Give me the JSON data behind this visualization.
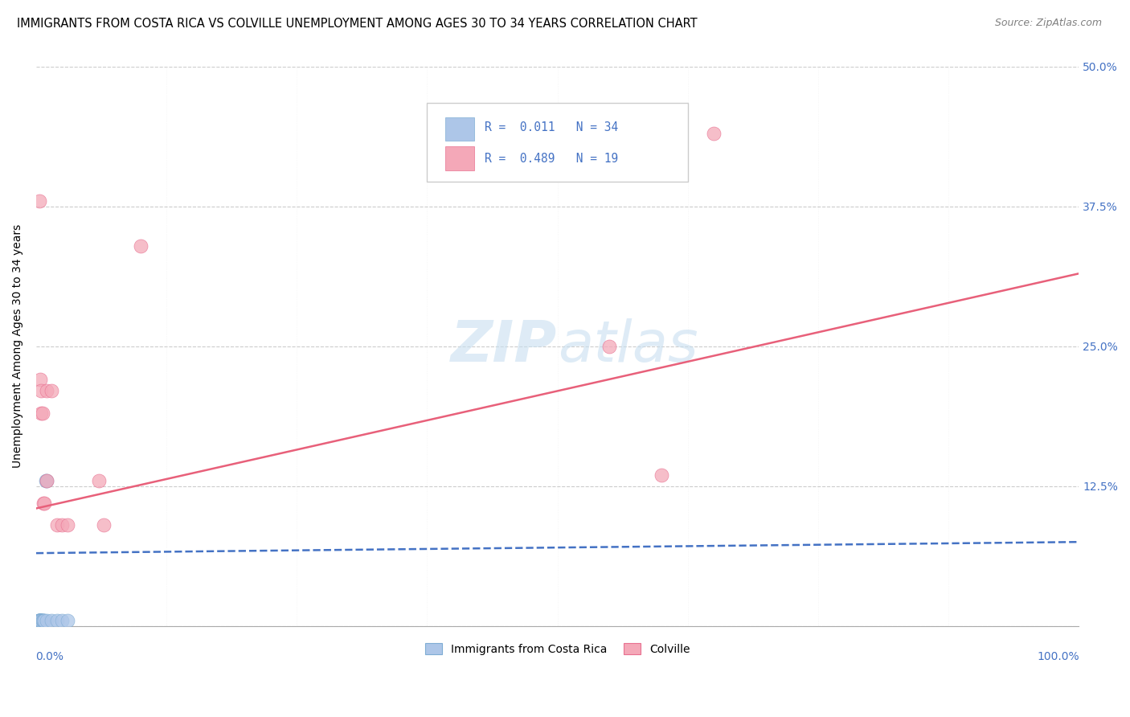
{
  "title": "IMMIGRANTS FROM COSTA RICA VS COLVILLE UNEMPLOYMENT AMONG AGES 30 TO 34 YEARS CORRELATION CHART",
  "source": "Source: ZipAtlas.com",
  "ylabel": "Unemployment Among Ages 30 to 34 years",
  "xlim": [
    0,
    1.0
  ],
  "ylim": [
    0,
    0.5
  ],
  "yticks": [
    0.0,
    0.125,
    0.25,
    0.375,
    0.5
  ],
  "yticklabels": [
    "",
    "12.5%",
    "25.0%",
    "37.5%",
    "50.0%"
  ],
  "xtick_left": "0.0%",
  "xtick_right": "100.0%",
  "legend_r1_text": "R =  0.011   N = 34",
  "legend_r2_text": "R =  0.489   N = 19",
  "legend1_label": "Immigrants from Costa Rica",
  "legend2_label": "Colville",
  "blue_scatter_x": [
    0.001,
    0.001,
    0.001,
    0.001,
    0.002,
    0.002,
    0.002,
    0.002,
    0.002,
    0.003,
    0.003,
    0.003,
    0.003,
    0.003,
    0.004,
    0.004,
    0.004,
    0.005,
    0.005,
    0.005,
    0.005,
    0.005,
    0.006,
    0.006,
    0.007,
    0.007,
    0.008,
    0.009,
    0.01,
    0.01,
    0.015,
    0.02,
    0.025,
    0.03
  ],
  "blue_scatter_y": [
    0.0,
    0.0,
    0.0,
    0.0,
    0.0,
    0.0,
    0.0,
    0.005,
    0.005,
    0.005,
    0.005,
    0.005,
    0.005,
    0.005,
    0.005,
    0.005,
    0.005,
    0.005,
    0.005,
    0.005,
    0.005,
    0.005,
    0.005,
    0.005,
    0.005,
    0.005,
    0.005,
    0.13,
    0.13,
    0.005,
    0.005,
    0.005,
    0.005,
    0.005
  ],
  "pink_scatter_x": [
    0.003,
    0.004,
    0.005,
    0.005,
    0.006,
    0.007,
    0.008,
    0.01,
    0.01,
    0.015,
    0.02,
    0.025,
    0.03,
    0.06,
    0.065,
    0.1,
    0.55,
    0.6,
    0.65
  ],
  "pink_scatter_y": [
    0.38,
    0.22,
    0.21,
    0.19,
    0.19,
    0.11,
    0.11,
    0.13,
    0.21,
    0.21,
    0.09,
    0.09,
    0.09,
    0.13,
    0.09,
    0.34,
    0.25,
    0.135,
    0.44
  ],
  "blue_line_x": [
    0.0,
    1.0
  ],
  "blue_line_y": [
    0.065,
    0.075
  ],
  "pink_line_x": [
    0.0,
    1.0
  ],
  "pink_line_y": [
    0.105,
    0.315
  ],
  "blue_color": "#adc6e8",
  "blue_edge_color": "#7fadd4",
  "blue_line_color": "#4472c4",
  "pink_color": "#f4a8b8",
  "pink_edge_color": "#e87090",
  "pink_line_color": "#e8607a",
  "background_color": "#ffffff",
  "watermark_zip": "ZIP",
  "watermark_atlas": "atlas",
  "title_fontsize": 10.5,
  "axis_label_fontsize": 10,
  "tick_fontsize": 10,
  "source_fontsize": 9
}
